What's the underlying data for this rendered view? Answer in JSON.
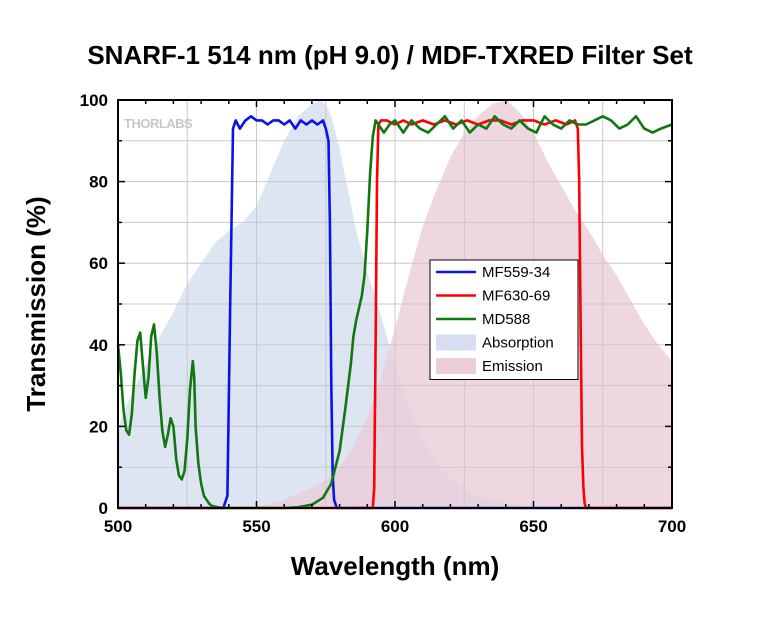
{
  "title": "SNARF-1 514 nm (pH 9.0) / MDF-TXRED Filter Set",
  "logo": "THORLABS",
  "chart_data": {
    "type": "line",
    "title": "SNARF-1 514 nm (pH 9.0) / MDF-TXRED Filter Set",
    "xlabel": "Wavelength (nm)",
    "ylabel": "Transmission (%)",
    "xlim": [
      500,
      700
    ],
    "ylim": [
      0,
      100
    ],
    "xticks": [
      500,
      550,
      600,
      650,
      700
    ],
    "yticks": [
      0,
      20,
      40,
      60,
      80,
      100
    ],
    "grid": true,
    "legend_position": "center-right",
    "series": [
      {
        "name": "MF559-34",
        "kind": "line",
        "color": "#0a14e6",
        "x": [
          500,
          538,
          539.5,
          540.5,
          541.5,
          542.5,
          544,
          546,
          548,
          550,
          552,
          554,
          556,
          558,
          560,
          562,
          564,
          566,
          568,
          570,
          572,
          574,
          575,
          576,
          576.5,
          577,
          577.5,
          578,
          579,
          580,
          700
        ],
        "y": [
          0,
          0,
          3,
          50,
          93,
          95,
          93,
          95,
          96,
          95,
          95,
          94,
          95,
          95,
          94,
          95,
          93,
          95,
          94,
          95,
          94,
          95,
          93,
          90,
          70,
          30,
          8,
          2,
          0,
          0,
          0
        ]
      },
      {
        "name": "MF630-69",
        "kind": "line",
        "color": "#ff0000",
        "x": [
          500,
          592,
          592.5,
          593,
          593.5,
          594,
          595,
          597,
          600,
          603,
          606,
          610,
          614,
          618,
          622,
          626,
          630,
          634,
          638,
          642,
          646,
          650,
          654,
          658,
          662,
          665,
          666,
          666.5,
          667,
          667.5,
          668,
          668.5,
          669,
          700
        ],
        "y": [
          0,
          0,
          5,
          40,
          80,
          94,
          95,
          95,
          94,
          95,
          94,
          95,
          94,
          95,
          94,
          95,
          94,
          95,
          95,
          94,
          95,
          95,
          94,
          95,
          94,
          95,
          93,
          80,
          45,
          15,
          5,
          1,
          0,
          0
        ]
      },
      {
        "name": "MD588",
        "kind": "line",
        "color": "#117711",
        "x": [
          500,
          501,
          502,
          503,
          504,
          505,
          506,
          507,
          508,
          509,
          510,
          511,
          512,
          513,
          514,
          515,
          516,
          517,
          518,
          519,
          520,
          521,
          522,
          523,
          524,
          525,
          526,
          527,
          527.5,
          528,
          529,
          530,
          531,
          532,
          533,
          534,
          536,
          538,
          540,
          550,
          560,
          565,
          570,
          574,
          577,
          580,
          582,
          584,
          585,
          586,
          587,
          588,
          589,
          590,
          591,
          592,
          593,
          594,
          596,
          598,
          600,
          603,
          606,
          609,
          612,
          615,
          618,
          621,
          624,
          627,
          630,
          633,
          636,
          639,
          642,
          645,
          648,
          651,
          654,
          657,
          660,
          663,
          666,
          669,
          672,
          675,
          678,
          681,
          684,
          687,
          690,
          693,
          696,
          700
        ],
        "y": [
          40,
          33,
          24,
          19,
          18,
          23,
          33,
          41,
          43,
          35,
          27,
          32,
          42,
          45,
          38,
          27,
          19,
          15,
          18,
          22,
          20,
          12,
          8,
          7,
          9,
          17,
          29,
          36,
          32,
          20,
          11,
          6,
          3,
          2,
          1,
          0.5,
          0.2,
          0,
          0,
          0,
          0,
          0.2,
          0.8,
          2.5,
          6,
          14,
          24,
          35,
          42,
          46,
          49,
          52,
          57,
          68,
          82,
          91,
          95,
          94,
          92,
          94,
          95,
          92,
          95,
          93,
          92,
          94,
          96,
          93,
          95,
          92,
          94,
          93,
          96,
          94,
          93,
          95,
          93,
          92,
          96,
          94,
          93,
          95,
          94,
          94,
          95,
          96,
          95,
          93,
          94,
          96,
          93,
          92,
          93,
          94
        ]
      },
      {
        "name": "Absorption",
        "kind": "area",
        "color": "#d6deef",
        "x": [
          500,
          505,
          510,
          515,
          520,
          525,
          530,
          535,
          540,
          545,
          550,
          555,
          560,
          565,
          570,
          573,
          575,
          577,
          580,
          583,
          586,
          590,
          595,
          600,
          605,
          610,
          615,
          620,
          625,
          630,
          635,
          640,
          645,
          650,
          655
        ],
        "y": [
          20,
          28,
          35,
          42,
          48,
          55,
          60,
          65,
          68,
          70,
          74,
          82,
          90,
          96,
          99,
          100,
          99,
          96,
          88,
          78,
          68,
          58,
          47,
          35,
          25,
          17,
          11,
          7,
          4.5,
          3,
          2,
          1.2,
          0.7,
          0.3,
          0
        ]
      },
      {
        "name": "Emission",
        "kind": "area",
        "color": "#eccedb",
        "x": [
          550,
          560,
          570,
          575,
          580,
          585,
          590,
          595,
          600,
          605,
          610,
          615,
          620,
          625,
          630,
          635,
          640,
          645,
          650,
          655,
          660,
          665,
          670,
          675,
          680,
          685,
          690,
          695,
          700
        ],
        "y": [
          0,
          2,
          5,
          7,
          10,
          15,
          22,
          32,
          44,
          57,
          69,
          78,
          86,
          92,
          96,
          99,
          100,
          97,
          92,
          85,
          79,
          73,
          68,
          62,
          57,
          51,
          45,
          40,
          36
        ]
      }
    ]
  }
}
